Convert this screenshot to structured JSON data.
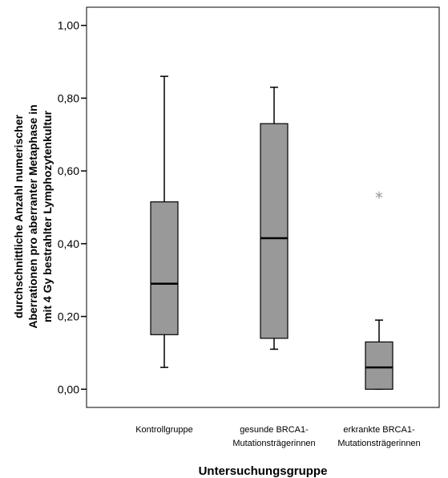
{
  "chart_data": {
    "type": "boxplot",
    "xlabel": "Untersuchungsgruppe",
    "ylabel_lines": [
      "durchschnittliche Anzahl numerischer",
      "Aberrationen pro aberranter Metaphase in",
      "mit 4 Gy bestrahlter Lymphozytenkultur"
    ],
    "ylim": [
      -0.05,
      1.05
    ],
    "yticks": [
      0.0,
      0.2,
      0.4,
      0.6,
      0.8,
      1.0
    ],
    "ytick_labels": [
      "0,00",
      "0,20",
      "0,40",
      "0,60",
      "0,80",
      "1,00"
    ],
    "box_color": "#999999",
    "outlier_color": "#999999",
    "categories": [
      {
        "label_lines": [
          "Kontrollgruppe"
        ],
        "whisker_low": 0.06,
        "q1": 0.15,
        "median": 0.29,
        "q3": 0.515,
        "whisker_high": 0.86,
        "outliers": []
      },
      {
        "label_lines": [
          "gesunde BRCA1-",
          "Mutationsträgerinnen"
        ],
        "whisker_low": 0.11,
        "q1": 0.14,
        "median": 0.415,
        "q3": 0.73,
        "whisker_high": 0.83,
        "outliers": []
      },
      {
        "label_lines": [
          "erkrankte BRCA1-",
          "Mutationsträgerinnen"
        ],
        "whisker_low": 0.0,
        "q1": 0.0,
        "median": 0.06,
        "q3": 0.13,
        "whisker_high": 0.19,
        "outliers": [
          {
            "value": 0.53,
            "symbol": "*"
          }
        ]
      }
    ]
  }
}
